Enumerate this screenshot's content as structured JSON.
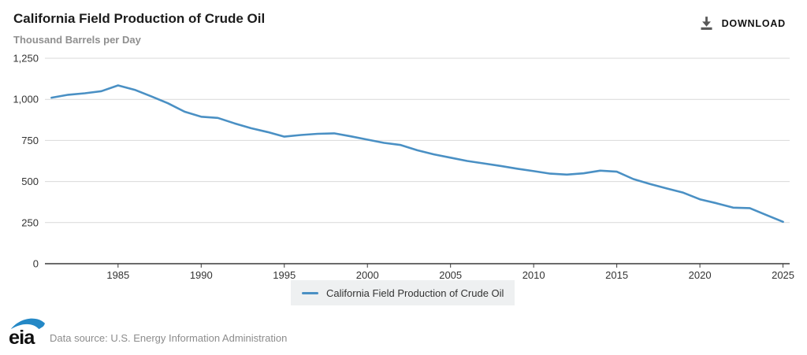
{
  "header": {
    "title": "California Field Production of Crude Oil",
    "subtitle": "Thousand Barrels per Day",
    "download_label": "DOWNLOAD"
  },
  "chart_data": {
    "type": "line",
    "title": "California Field Production of Crude Oil",
    "xlabel": "",
    "ylabel": "Thousand Barrels per Day",
    "grid": true,
    "legend_position": "bottom",
    "xlim": [
      1980.6,
      2025.4
    ],
    "ylim": [
      0,
      1250
    ],
    "x_ticks": [
      1985,
      1990,
      1995,
      2000,
      2005,
      2010,
      2015,
      2020,
      2025
    ],
    "y_ticks": [
      0,
      250,
      500,
      750,
      1000,
      1250
    ],
    "y_tick_labels": [
      "0",
      "250",
      "500",
      "750",
      "1,000",
      "1,250"
    ],
    "x": [
      1981,
      1982,
      1983,
      1984,
      1985,
      1986,
      1987,
      1988,
      1989,
      1990,
      1991,
      1992,
      1993,
      1994,
      1995,
      1996,
      1997,
      1998,
      1999,
      2000,
      2001,
      2002,
      2003,
      2004,
      2005,
      2006,
      2007,
      2008,
      2009,
      2010,
      2011,
      2012,
      2013,
      2014,
      2015,
      2016,
      2017,
      2018,
      2019,
      2020,
      2021,
      2022,
      2023,
      2024,
      2025
    ],
    "series": [
      {
        "name": "California Field Production of Crude Oil",
        "color": "#4a90c4",
        "values": [
          1010,
          1028,
          1037,
          1050,
          1085,
          1058,
          1018,
          976,
          925,
          894,
          887,
          854,
          824,
          801,
          773,
          783,
          790,
          793,
          775,
          755,
          735,
          722,
          690,
          665,
          645,
          625,
          610,
          595,
          578,
          563,
          548,
          542,
          550,
          566,
          560,
          515,
          485,
          458,
          432,
          392,
          368,
          341,
          338,
          296,
          255
        ]
      }
    ]
  },
  "legend": {
    "label": "California Field Production of Crude Oil"
  },
  "footer": {
    "logo_text": "eia",
    "logo_accent": "#2488c6",
    "source_text": "Data source: U.S. Energy Information Administration"
  },
  "colors": {
    "series_blue": "#4a90c4",
    "gridline": "#d9d9d9",
    "axis": "#3a3a3a",
    "legend_bg": "#eef0f1"
  }
}
